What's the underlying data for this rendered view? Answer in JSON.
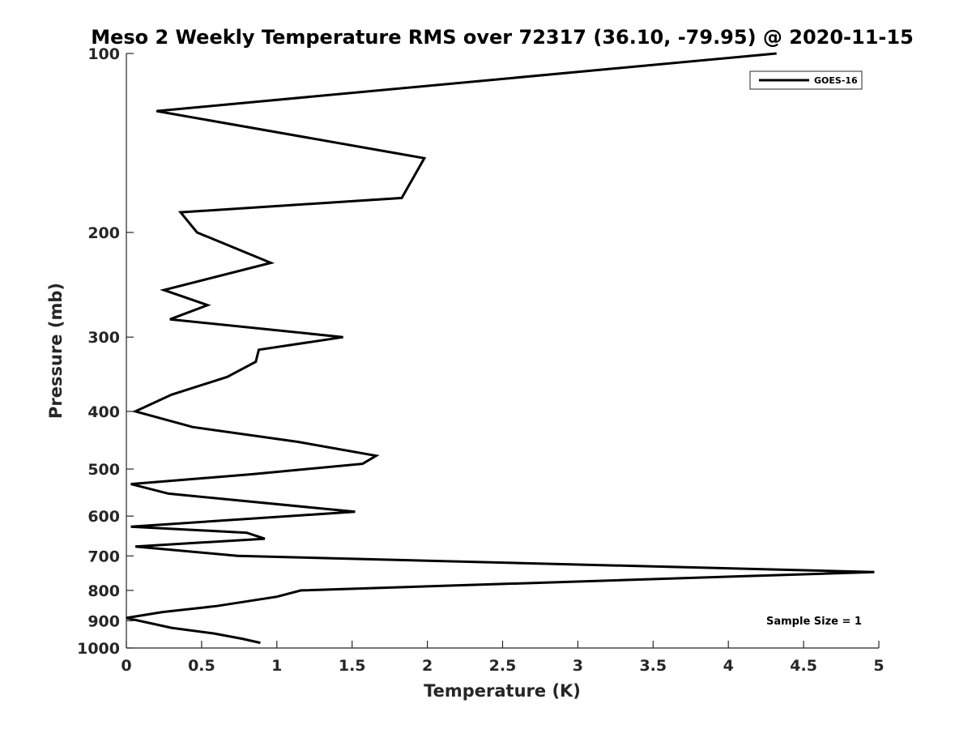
{
  "chart_data": {
    "type": "line",
    "title": "Meso 2 Weekly Temperature RMS over 72317 (36.10, -79.95) @ 2020-11-15",
    "xlabel": "Temperature (K)",
    "ylabel": "Pressure (mb)",
    "xlim": [
      0,
      5
    ],
    "ylim": [
      1000,
      100
    ],
    "y_scale": "log",
    "y_reversed": true,
    "x_ticks": [
      "0",
      "0.5",
      "1",
      "1.5",
      "2",
      "2.5",
      "3",
      "3.5",
      "4",
      "4.5",
      "5"
    ],
    "y_ticks": [
      "100",
      "200",
      "300",
      "400",
      "500",
      "600",
      "700",
      "800",
      "900",
      "1000"
    ],
    "grid": false,
    "legend_position": "top-right",
    "series": [
      {
        "name": "GOES-16",
        "color": "#000000",
        "points": [
          {
            "x": 4.32,
            "p": 100
          },
          {
            "x": 0.2,
            "p": 125
          },
          {
            "x": 1.98,
            "p": 150
          },
          {
            "x": 1.83,
            "p": 175
          },
          {
            "x": 0.36,
            "p": 185
          },
          {
            "x": 0.47,
            "p": 200
          },
          {
            "x": 0.96,
            "p": 225
          },
          {
            "x": 0.25,
            "p": 250
          },
          {
            "x": 0.54,
            "p": 265
          },
          {
            "x": 0.29,
            "p": 280
          },
          {
            "x": 1.44,
            "p": 300
          },
          {
            "x": 0.88,
            "p": 315
          },
          {
            "x": 0.86,
            "p": 330
          },
          {
            "x": 0.67,
            "p": 350
          },
          {
            "x": 0.3,
            "p": 375
          },
          {
            "x": 0.06,
            "p": 400
          },
          {
            "x": 0.44,
            "p": 425
          },
          {
            "x": 1.14,
            "p": 450
          },
          {
            "x": 1.66,
            "p": 475
          },
          {
            "x": 1.57,
            "p": 490
          },
          {
            "x": 0.84,
            "p": 510
          },
          {
            "x": 0.03,
            "p": 530
          },
          {
            "x": 0.28,
            "p": 550
          },
          {
            "x": 1.52,
            "p": 590
          },
          {
            "x": 0.03,
            "p": 625
          },
          {
            "x": 0.8,
            "p": 640
          },
          {
            "x": 0.92,
            "p": 655
          },
          {
            "x": 0.06,
            "p": 675
          },
          {
            "x": 0.74,
            "p": 700
          },
          {
            "x": 4.97,
            "p": 745
          },
          {
            "x": 1.16,
            "p": 800
          },
          {
            "x": 1.0,
            "p": 820
          },
          {
            "x": 0.6,
            "p": 850
          },
          {
            "x": 0.24,
            "p": 870
          },
          {
            "x": 0.0,
            "p": 890
          },
          {
            "x": 0.3,
            "p": 925
          },
          {
            "x": 0.58,
            "p": 945
          },
          {
            "x": 0.77,
            "p": 965
          },
          {
            "x": 0.89,
            "p": 980
          }
        ]
      }
    ],
    "annotation": "Sample Size = 1"
  }
}
